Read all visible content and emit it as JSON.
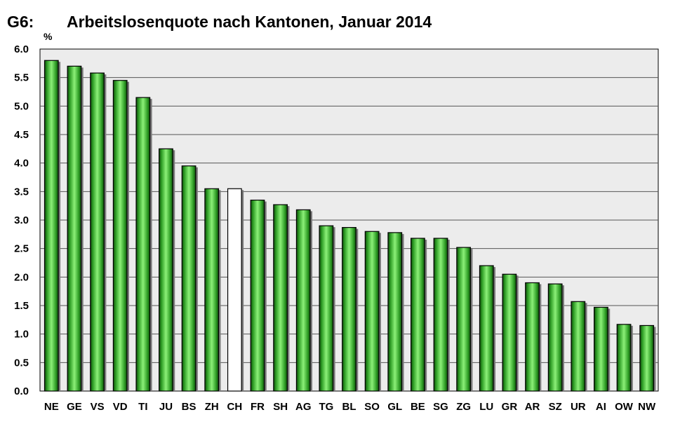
{
  "header": {
    "chart_id": "G6:",
    "title": "Arbeitslosenquote nach Kantonen, Januar 2014",
    "unit": "%"
  },
  "colors": {
    "plot_background": "#ececec",
    "bar_green": "#44c238",
    "bar_highlight": "#ffffff",
    "bar_outline": "#000000",
    "gridline": "#555555"
  },
  "chart_data": {
    "type": "bar",
    "title": "Arbeitslosenquote nach Kantonen, Januar 2014",
    "xlabel": "",
    "ylabel": "%",
    "ylim": [
      0,
      6
    ],
    "ytick_step": 0.5,
    "ytick_labels": [
      "0.0",
      "0.5",
      "1.0",
      "1.5",
      "2.0",
      "2.5",
      "3.0",
      "3.5",
      "4.0",
      "4.5",
      "5.0",
      "5.5",
      "6.0"
    ],
    "grid": true,
    "legend": "none",
    "highlight_category": "CH",
    "categories": [
      "NE",
      "GE",
      "VS",
      "VD",
      "TI",
      "JU",
      "BS",
      "ZH",
      "CH",
      "FR",
      "SH",
      "AG",
      "TG",
      "BL",
      "SO",
      "GL",
      "BE",
      "SG",
      "ZG",
      "LU",
      "GR",
      "AR",
      "SZ",
      "UR",
      "AI",
      "OW",
      "NW"
    ],
    "values": [
      5.8,
      5.7,
      5.58,
      5.45,
      5.15,
      4.25,
      3.95,
      3.55,
      3.55,
      3.35,
      3.27,
      3.18,
      2.9,
      2.87,
      2.8,
      2.78,
      2.68,
      2.68,
      2.52,
      2.2,
      2.05,
      1.9,
      1.88,
      1.57,
      1.47,
      1.17,
      1.15
    ]
  }
}
